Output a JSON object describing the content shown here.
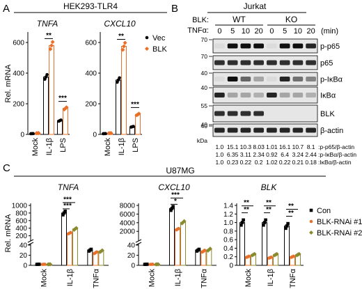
{
  "panels": {
    "a": "A",
    "b": "B",
    "c": "C"
  },
  "colors": {
    "vec": "#000000",
    "blk": "#e8702a",
    "con": "#000000",
    "rnai1": "#e8702a",
    "rnai2": "#8a8a2e",
    "sig": "#000000"
  },
  "panel_a": {
    "cell_line": "HEK293-TLR4",
    "ylabel": "Rel. mRNA",
    "legend": [
      "Vec",
      "BLK"
    ],
    "categories": [
      "Mock",
      "IL-1β",
      "LPS"
    ],
    "yticks": [
      "0",
      "200",
      "400",
      "600"
    ],
    "charts": [
      {
        "title": "TNFA",
        "ylim": [
          0,
          650
        ],
        "series": [
          {
            "name": "Vec",
            "values": [
              5,
              375,
              90
            ]
          },
          {
            "name": "BLK",
            "values": [
              8,
              580,
              170
            ]
          }
        ],
        "sig": [
          {
            "cat": 1,
            "text": "**"
          },
          {
            "cat": 2,
            "text": "***"
          }
        ]
      },
      {
        "title": "CXCL10",
        "ylim": [
          0,
          650
        ],
        "series": [
          {
            "name": "Vec",
            "values": [
              5,
              355,
              50
            ]
          },
          {
            "name": "BLK",
            "values": [
              8,
              575,
              130
            ]
          }
        ],
        "sig": [
          {
            "cat": 1,
            "text": "**"
          },
          {
            "cat": 2,
            "text": "***"
          }
        ]
      }
    ]
  },
  "panel_b": {
    "cell_line": "Jurkat",
    "blk_label": "BLK:",
    "tnf_label": "TNFα:",
    "groups": [
      "WT",
      "KO"
    ],
    "timepoints": [
      "0",
      "5",
      "10",
      "20",
      "0",
      "5",
      "10",
      "20"
    ],
    "unit": "(min)",
    "kda_label": "kDa",
    "blots": [
      {
        "label": "p-p65",
        "markers": [
          "70"
        ],
        "intensity": [
          0.05,
          1,
          1,
          1,
          0.05,
          1,
          1,
          0.9
        ]
      },
      {
        "label": "p65",
        "markers": [
          "70"
        ],
        "intensity": [
          0.85,
          0.85,
          0.85,
          0.85,
          0.85,
          0.85,
          0.85,
          0.85
        ]
      },
      {
        "label": "p-IκBα",
        "markers": [
          "40"
        ],
        "intensity": [
          0.05,
          1,
          0.6,
          0.3,
          0.05,
          0.9,
          0.55,
          0.45
        ]
      },
      {
        "label": "IκBα",
        "markers": [
          "40"
        ],
        "intensity": [
          0.9,
          0.3,
          0.3,
          0.25,
          0.9,
          0.3,
          0.3,
          0.25
        ]
      },
      {
        "label": "BLK",
        "markers": [
          "55",
          "40"
        ],
        "intensity": [
          0.85,
          0.85,
          0.85,
          0.85,
          0.0,
          0.0,
          0.0,
          0.0
        ]
      },
      {
        "label": "β-actin",
        "markers": [
          "40"
        ],
        "intensity": [
          0.9,
          0.9,
          0.9,
          0.9,
          0.9,
          0.9,
          0.9,
          0.9
        ]
      }
    ],
    "quant": [
      {
        "values": [
          "1.0",
          "15.1",
          "10.3",
          "8.03",
          "1.01",
          "16.1",
          "10.7",
          "8.1"
        ],
        "label": ":p-p65/β-actin"
      },
      {
        "values": [
          "1.0",
          "6.35",
          "3.11",
          "2.34",
          "0.92",
          "6.4",
          "3.24",
          "2.44"
        ],
        "label": ":p-IκBα/β-actin"
      },
      {
        "values": [
          "1.0",
          "0.23",
          "0.22",
          "0.2",
          "1.02",
          "0.22",
          "0.21",
          "0.18"
        ],
        "label": ":IκBα/β-actin"
      }
    ]
  },
  "panel_c": {
    "cell_line": "U87MG",
    "ylabel": "Rel. mRNA",
    "legend": [
      "Con",
      "BLK-RNAi #1",
      "BLK-RNAi #2"
    ],
    "categories": [
      "Mock",
      "IL-1β",
      "TNFα"
    ],
    "charts": [
      {
        "title": "TNFA",
        "broken": true,
        "lower_ylim": [
          0,
          40
        ],
        "upper_ylim": [
          100,
          1000
        ],
        "lower_ticks": [
          "0",
          "20",
          "40"
        ],
        "upper_ticks": [
          "200",
          "400",
          "600",
          "800",
          "1000"
        ],
        "series": [
          {
            "name": "Con",
            "values": [
              2,
              800,
              30
            ]
          },
          {
            "name": "BLK-RNAi #1",
            "values": [
              2,
              270,
              25
            ]
          },
          {
            "name": "BLK-RNAi #2",
            "values": [
              2,
              380,
              28
            ]
          }
        ],
        "sig": [
          "***",
          "***"
        ]
      },
      {
        "title": "CXCL10",
        "broken": true,
        "lower_ylim": [
          0,
          40
        ],
        "upper_ylim": [
          100,
          8000
        ],
        "lower_ticks": [
          "0",
          "20",
          "40"
        ],
        "upper_ticks": [
          "2000",
          "4000",
          "6000",
          "8000"
        ],
        "series": [
          {
            "name": "Con",
            "values": [
              2,
              7300,
              30
            ]
          },
          {
            "name": "BLK-RNAi #1",
            "values": [
              2,
              2500,
              28
            ]
          },
          {
            "name": "BLK-RNAi #2",
            "values": [
              2,
              4100,
              31
            ]
          }
        ],
        "sig": [
          "*",
          "***"
        ]
      },
      {
        "title": "BLK",
        "broken": false,
        "ylim": [
          0,
          1.4
        ],
        "ticks": [
          "0",
          "0.2",
          "0.4",
          "0.6",
          "0.8",
          "1.0",
          "1.2",
          "1.4"
        ],
        "series": [
          {
            "name": "Con",
            "values": [
              1.0,
              1.0,
              0.92
            ]
          },
          {
            "name": "BLK-RNAi #1",
            "values": [
              0.2,
              0.18,
              0.2
            ]
          },
          {
            "name": "BLK-RNAi #2",
            "values": [
              0.25,
              0.25,
              0.25
            ]
          }
        ],
        "sig": [
          "**",
          "**"
        ]
      }
    ]
  },
  "chart_data": [
    {
      "type": "bar",
      "title": "TNFA",
      "ylabel": "Rel. mRNA",
      "categories": [
        "Mock",
        "IL-1β",
        "LPS"
      ],
      "ylim": [
        0,
        650
      ],
      "series": [
        {
          "name": "Vec",
          "values": [
            5,
            375,
            90
          ]
        },
        {
          "name": "BLK",
          "values": [
            8,
            580,
            170
          ]
        }
      ]
    },
    {
      "type": "bar",
      "title": "CXCL10",
      "categories": [
        "Mock",
        "IL-1β",
        "LPS"
      ],
      "ylim": [
        0,
        650
      ],
      "series": [
        {
          "name": "Vec",
          "values": [
            5,
            355,
            50
          ]
        },
        {
          "name": "BLK",
          "values": [
            8,
            575,
            130
          ]
        }
      ]
    },
    {
      "type": "bar",
      "title": "TNFA",
      "ylabel": "Rel. mRNA",
      "categories": [
        "Mock",
        "IL-1β",
        "TNFα"
      ],
      "series": [
        {
          "name": "Con",
          "values": [
            2,
            800,
            30
          ]
        },
        {
          "name": "BLK-RNAi #1",
          "values": [
            2,
            270,
            25
          ]
        },
        {
          "name": "BLK-RNAi #2",
          "values": [
            2,
            380,
            28
          ]
        }
      ]
    },
    {
      "type": "bar",
      "title": "CXCL10",
      "categories": [
        "Mock",
        "IL-1β",
        "TNFα"
      ],
      "series": [
        {
          "name": "Con",
          "values": [
            2,
            7300,
            30
          ]
        },
        {
          "name": "BLK-RNAi #1",
          "values": [
            2,
            2500,
            28
          ]
        },
        {
          "name": "BLK-RNAi #2",
          "values": [
            2,
            4100,
            31
          ]
        }
      ]
    },
    {
      "type": "bar",
      "title": "BLK",
      "categories": [
        "Mock",
        "IL-1β",
        "TNFα"
      ],
      "ylim": [
        0,
        1.4
      ],
      "series": [
        {
          "name": "Con",
          "values": [
            1.0,
            1.0,
            0.92
          ]
        },
        {
          "name": "BLK-RNAi #1",
          "values": [
            0.2,
            0.18,
            0.2
          ]
        },
        {
          "name": "BLK-RNAi #2",
          "values": [
            0.25,
            0.25,
            0.25
          ]
        }
      ]
    }
  ]
}
